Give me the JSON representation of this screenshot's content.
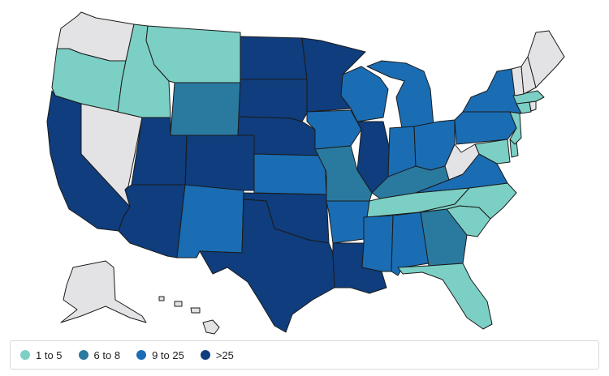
{
  "colors": {
    "no_data": "#e3e3e5",
    "tier_1": "#7ccfc4",
    "tier_2": "#2a7aa0",
    "tier_3": "#1a6db3",
    "tier_4": "#0f3d7d",
    "stroke": "#1b1b1b"
  },
  "legend": {
    "items": [
      {
        "label": "1 to 5",
        "color": "#7ccfc4"
      },
      {
        "label": "6 to 8",
        "color": "#2a7aa0"
      },
      {
        "label": "9 to 25",
        "color": "#1a6db3"
      },
      {
        "label": ">25",
        "color": "#0f3d7d"
      }
    ]
  },
  "map": {
    "state_tiers": {
      "WA": "no_data",
      "OR": "1 to 5",
      "ID": "1 to 5",
      "MT": "1 to 5",
      "WY": "6 to 8",
      "NV": "no_data",
      "CA": ">25",
      "UT": ">25",
      "CO": ">25",
      "AZ": ">25",
      "NM": "9 to 25",
      "ND": ">25",
      "SD": ">25",
      "NE": ">25",
      "KS": "9 to 25",
      "OK": ">25",
      "TX": ">25",
      "MN": ">25",
      "IA": "9 to 25",
      "MO": "6 to 8",
      "AR": "9 to 25",
      "LA": ">25",
      "WI": "9 to 25",
      "IL": ">25",
      "MI": "9 to 25",
      "IN": "9 to 25",
      "OH": "9 to 25",
      "KY": "6 to 8",
      "TN": "1 to 5",
      "MS": "9 to 25",
      "AL": "9 to 25",
      "GA": "6 to 8",
      "FL": "1 to 5",
      "SC": "1 to 5",
      "NC": "1 to 5",
      "VA": "9 to 25",
      "WV": "no_data",
      "PA": "9 to 25",
      "NY": "9 to 25",
      "MD": "1 to 5",
      "DE": "1 to 5",
      "NJ": "1 to 5",
      "CT": "1 to 5",
      "RI": "no_data",
      "MA": "1 to 5",
      "VT": "no_data",
      "NH": "no_data",
      "ME": "no_data",
      "AK": "no_data",
      "HI": "no_data"
    }
  }
}
